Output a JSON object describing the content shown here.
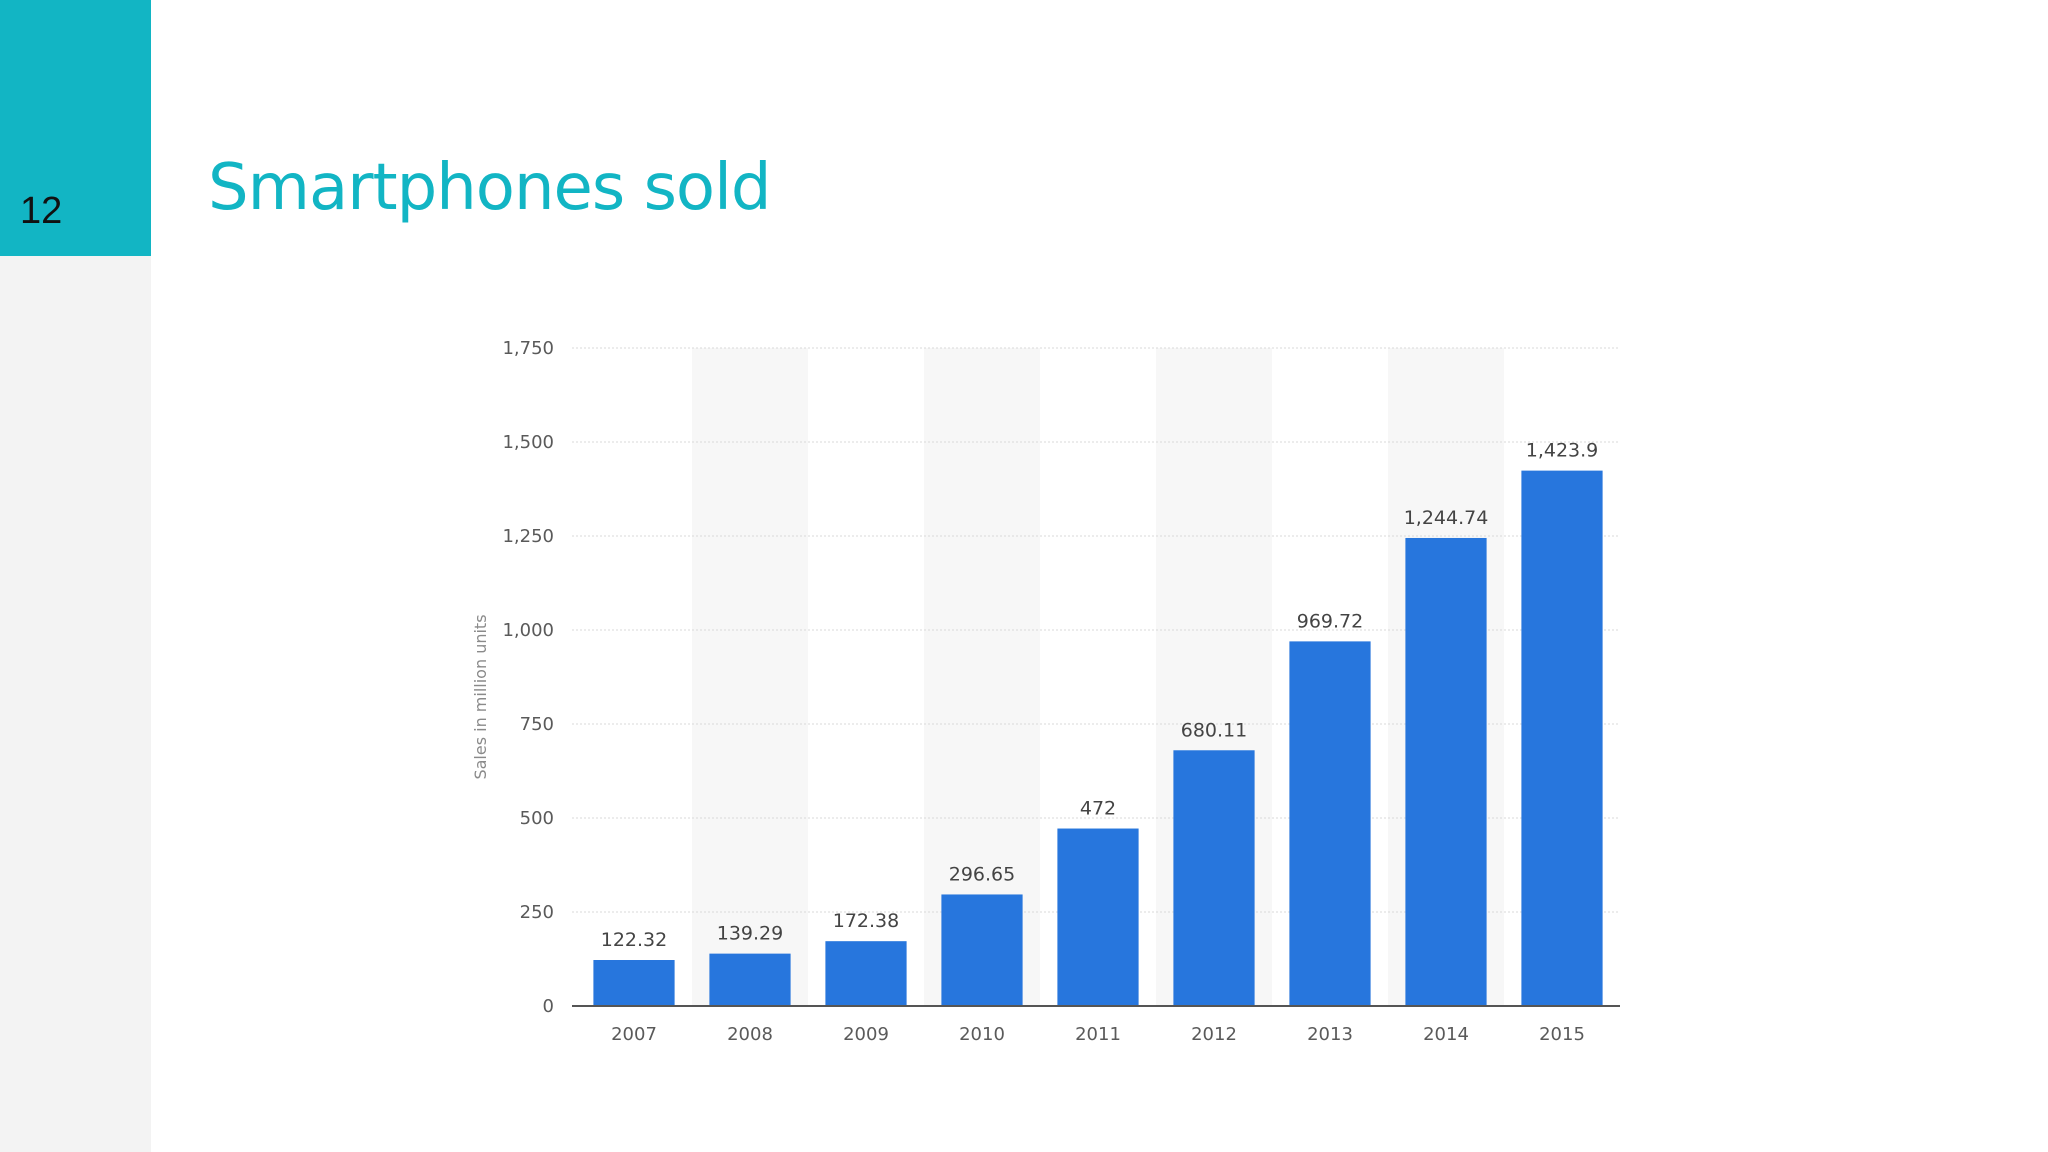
{
  "slide": {
    "number": "12",
    "title": "Smartphones sold"
  },
  "colors": {
    "accent": "#12b5c4",
    "bar": "#2776dd",
    "band": "#f7f7f7",
    "grid": "#d9d9d9"
  },
  "chart_data": {
    "type": "bar",
    "title": "",
    "xlabel": "",
    "ylabel": "Sales in million units",
    "categories": [
      "2007",
      "2008",
      "2009",
      "2010",
      "2011",
      "2012",
      "2013",
      "2014",
      "2015"
    ],
    "values": [
      122.32,
      139.29,
      172.38,
      296.65,
      472,
      680.11,
      969.72,
      1244.74,
      1423.9
    ],
    "value_labels": [
      "122.32",
      "139.29",
      "172.38",
      "296.65",
      "472",
      "680.11",
      "969.72",
      "1,244.74",
      "1,423.9"
    ],
    "ylim": [
      0,
      1750
    ],
    "yticks": [
      0,
      250,
      500,
      750,
      1000,
      1250,
      1500,
      1750
    ],
    "ytick_labels": [
      "0",
      "250",
      "500",
      "750",
      "1,000",
      "1,250",
      "1,500",
      "1,750"
    ],
    "grid": true,
    "legend": "none"
  }
}
